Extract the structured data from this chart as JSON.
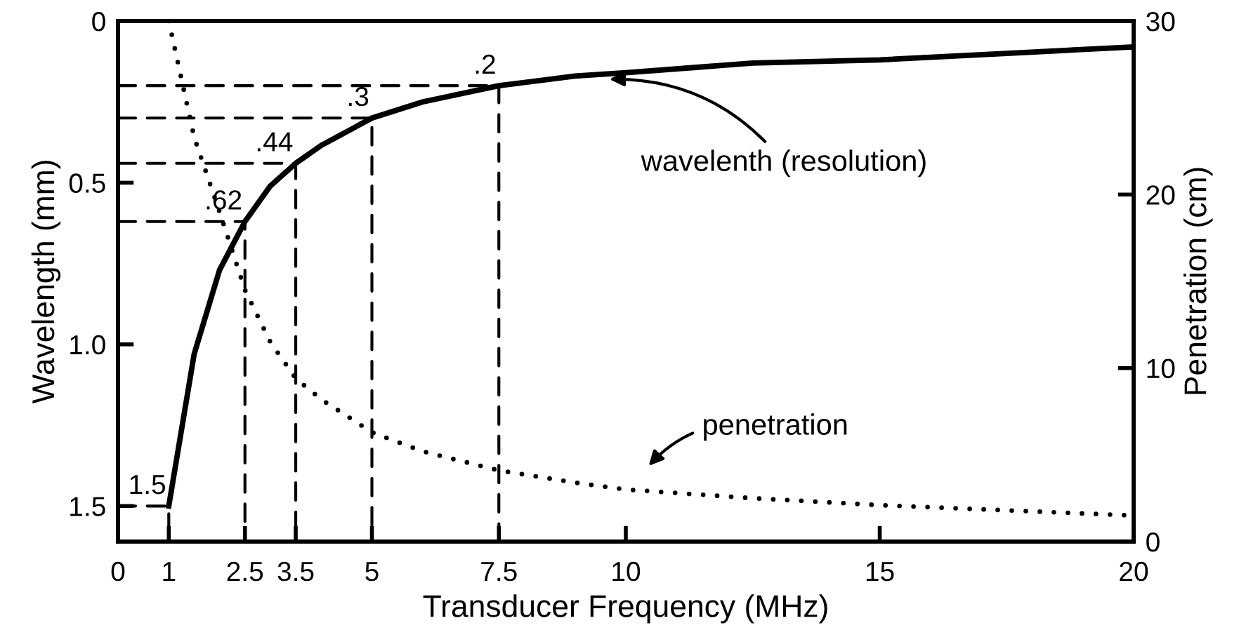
{
  "chart_data": {
    "type": "line",
    "xlabel": "Transducer Frequency (MHz)",
    "ylabel": "Wavelength (mm)",
    "y2label": "Penetration (cm)",
    "x": [
      1,
      1.5,
      2,
      2.5,
      3,
      3.5,
      4,
      5,
      6,
      7.5,
      9,
      10,
      12.5,
      15,
      17.5,
      20
    ],
    "series": [
      {
        "name": "wavelenth (resolution)",
        "color": "#000000",
        "line_style": "solid",
        "values": [
          1.5,
          1.03,
          0.77,
          0.62,
          0.51,
          0.44,
          0.385,
          0.3,
          0.25,
          0.2,
          0.17,
          0.16,
          0.13,
          0.12,
          0.1,
          0.08
        ]
      },
      {
        "name": "penetration",
        "color": "#000000",
        "line_style": "dotted",
        "axis": "y2",
        "values": [
          30,
          23.3,
          19,
          14.5,
          11.5,
          9.4,
          8.2,
          6.3,
          5.2,
          4.1,
          3.4,
          3.0,
          2.5,
          2.1,
          1.8,
          1.5
        ]
      },
      {
        "color": "#000000",
        "line_style": "dashed",
        "x": [
          0,
          1,
          1
        ],
        "values": [
          1.5,
          1.5,
          1.61
        ]
      },
      {
        "color": "#000000",
        "line_style": "dashed",
        "x": [
          0,
          2.5,
          2.5
        ],
        "values": [
          0.62,
          0.62,
          1.61
        ]
      },
      {
        "color": "#000000",
        "line_style": "dashed",
        "x": [
          0,
          3.5,
          3.5
        ],
        "values": [
          0.44,
          0.44,
          1.61
        ]
      },
      {
        "color": "#000000",
        "line_style": "dashed",
        "x": [
          0,
          5,
          5
        ],
        "values": [
          0.3,
          0.3,
          1.61
        ]
      },
      {
        "color": "#000000",
        "line_style": "dashed",
        "x": [
          0,
          7.5,
          7.5
        ],
        "values": [
          0.2,
          0.2,
          1.61
        ]
      }
    ],
    "annotations": [
      {
        "text": "1.5",
        "x": 1,
        "y": 1.5
      },
      {
        "text": ".62",
        "x": 2.5,
        "y": 0.62
      },
      {
        "text": ".44",
        "x": 3.5,
        "y": 0.44
      },
      {
        "text": ".3",
        "x": 5,
        "y": 0.3
      },
      {
        "text": ".2",
        "x": 7.5,
        "y": 0.2
      }
    ],
    "xlim": [
      0,
      20
    ],
    "xticks": [
      0,
      1,
      2.5,
      3.5,
      5,
      7.5,
      10,
      15,
      20
    ],
    "ylim": [
      1.61,
      0
    ],
    "yticks": [
      0,
      0.5,
      {
        "value": 1,
        "label": "1.0"
      },
      1.5
    ],
    "y2lim": [
      0,
      30
    ],
    "y2ticks": [
      0,
      10,
      20,
      30
    ],
    "grid": false,
    "legend": false,
    "marker": "none"
  }
}
